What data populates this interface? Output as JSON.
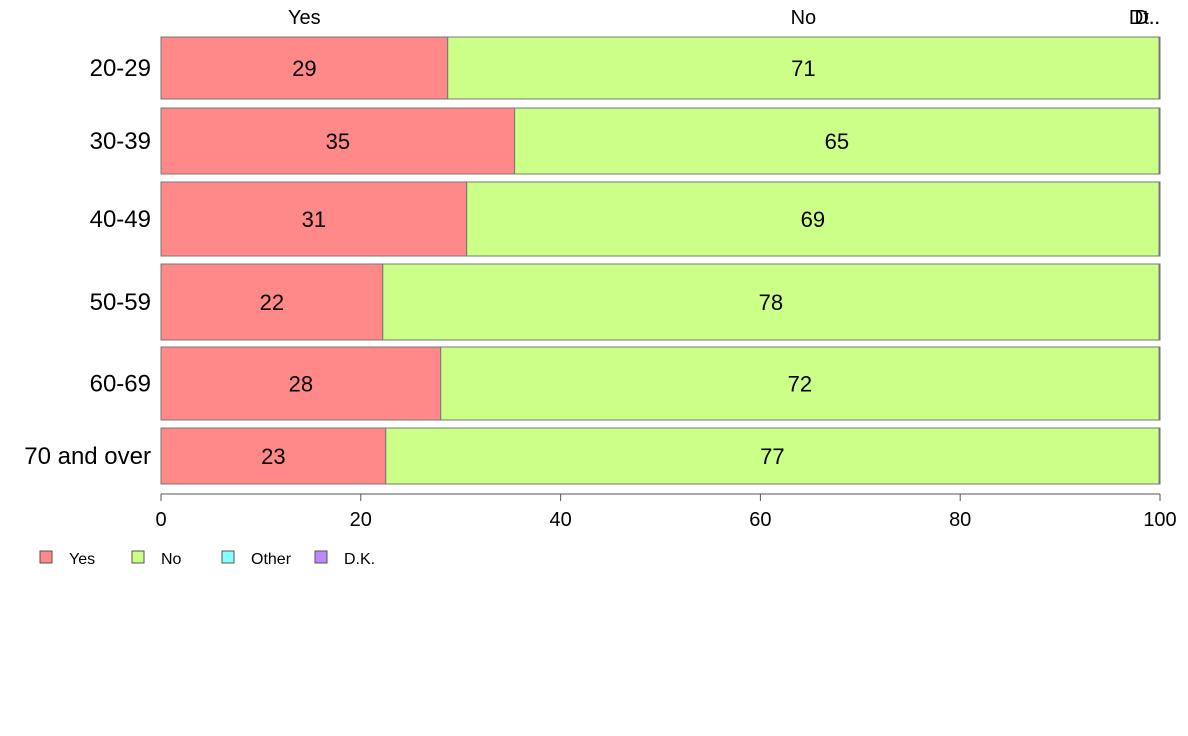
{
  "chart_data": {
    "type": "bar",
    "orientation": "horizontal",
    "stacked": true,
    "categories": [
      "20-29",
      "30-39",
      "40-49",
      "50-59",
      "60-69",
      "70 and over"
    ],
    "series": [
      {
        "name": "Yes",
        "values": [
          28.7,
          35.4,
          30.6,
          22.2,
          28.0,
          22.5
        ],
        "labels": [
          "29",
          "35",
          "31",
          "22",
          "28",
          "23"
        ],
        "color": "#ff8888"
      },
      {
        "name": "No",
        "values": [
          71.2,
          64.5,
          69.3,
          77.7,
          71.9,
          77.4
        ],
        "labels": [
          "71",
          "65",
          "69",
          "78",
          "72",
          "77"
        ],
        "color": "#ccff88"
      },
      {
        "name": "Other",
        "values": [
          0.05,
          0.05,
          0.05,
          0.05,
          0.05,
          0.05
        ],
        "labels": [
          "",
          "",
          "",
          "",
          "",
          ""
        ],
        "color": "#88ffff"
      },
      {
        "name": "D.K.",
        "values": [
          0.05,
          0.05,
          0.05,
          0.05,
          0.05,
          0.05
        ],
        "labels": [
          "",
          "",
          "",
          "",
          "",
          ""
        ],
        "color": "#bb88ff"
      }
    ],
    "top_labels": [
      "Yes",
      "No",
      "Dt..",
      "D.."
    ],
    "xlim": [
      0,
      100
    ],
    "xticks": [
      0,
      20,
      40,
      60,
      80,
      100
    ],
    "grid": false,
    "legend_position": "bottom-left"
  }
}
